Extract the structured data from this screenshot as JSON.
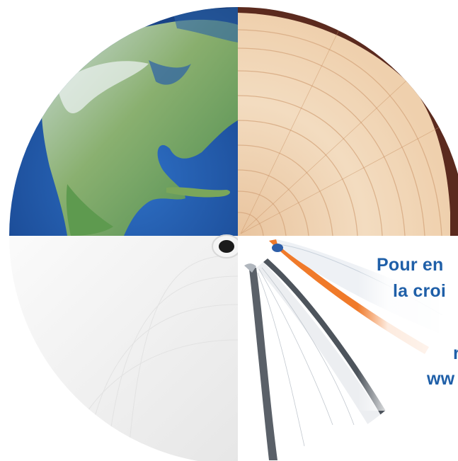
{
  "colors": {
    "caption_blue": "#1f5fa8",
    "ocean_blue": "#1d4f9b",
    "wood_light": "#f0d3b2",
    "wood_ring": "#d4a57c",
    "bark": "#5b2a1e",
    "paper": "#f3f3f3",
    "book_orange": "#f07a2a",
    "book_grey": "#5a6068"
  },
  "visual": {
    "quadrants": [
      "earth-globe",
      "tree-trunk-cross-section",
      "paper-roll",
      "open-books"
    ]
  },
  "caption": {
    "line1": "Pour en",
    "line2": "la croi",
    "line3": "r",
    "line4": "ww"
  }
}
